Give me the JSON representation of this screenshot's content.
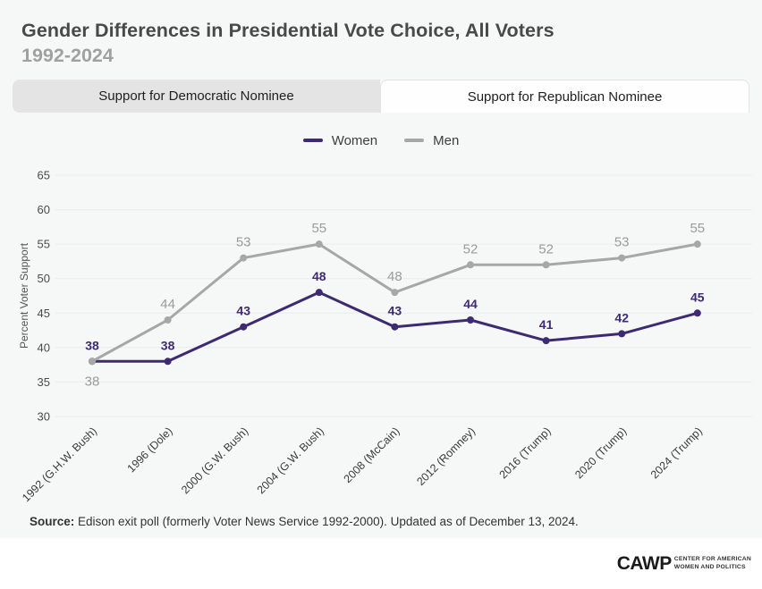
{
  "header": {
    "title": "Gender Differences in Presidential Vote Choice, All Voters",
    "subtitle": "1992-2024"
  },
  "tabs": [
    {
      "label": "Support for Democratic Nominee",
      "active": false
    },
    {
      "label": "Support for Republican Nominee",
      "active": true
    }
  ],
  "chart_data": {
    "type": "line",
    "title": "Support for Republican Nominee",
    "categories": [
      "1992 (G.H.W. Bush)",
      "1996 (Dole)",
      "2000 (G.W. Bush)",
      "2004 (G.W. Bush)",
      "2008 (McCain)",
      "2012 (Romney)",
      "2016 (Trump)",
      "2020 (Trump)",
      "2024 (Trump)"
    ],
    "series": [
      {
        "name": "Women",
        "color": "#3e2a73",
        "label_color": "#3e2a73",
        "values": [
          38,
          38,
          43,
          48,
          43,
          44,
          41,
          42,
          45
        ]
      },
      {
        "name": "Men",
        "color": "#a7a7a7",
        "label_color": "#9b9b9b",
        "values": [
          38,
          44,
          53,
          55,
          48,
          52,
          52,
          53,
          55
        ]
      }
    ],
    "xlabel": "",
    "ylabel": "Percent Voter Support",
    "ylim": [
      30,
      65
    ],
    "ytick_step": 5,
    "grid": true,
    "legend_position": "top"
  },
  "source": {
    "label": "Source:",
    "text": " Edison exit poll (formerly Voter News Service 1992-2000). Updated as of December 13, 2024."
  },
  "logo": {
    "main": "CAWP",
    "sub_line1": "Center for American",
    "sub_line2": "Women and Politics"
  },
  "colors": {
    "card_background": "#f6f7f7",
    "gridline": "#eaeced",
    "women_purple": "#3e2a73",
    "men_gray": "#a7a7a7"
  }
}
